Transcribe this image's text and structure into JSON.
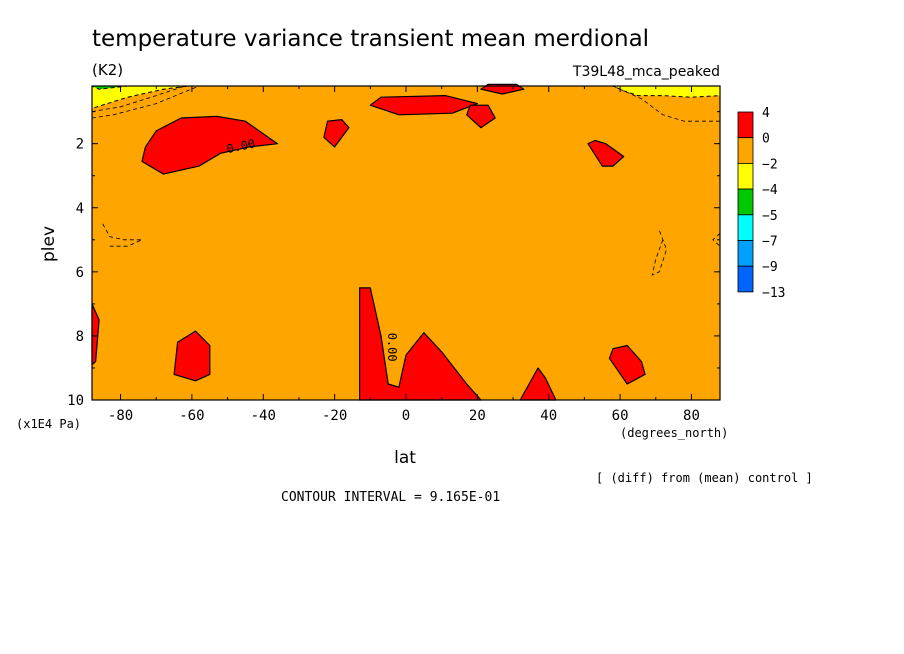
{
  "chart_data": {
    "type": "heatmap",
    "title": "temperature variance transient mean merdional",
    "units": "(K2)",
    "experiment": "T39L48_mca_peaked",
    "xlabel": "lat",
    "x_units": "(degrees_north)",
    "ylabel": "plev",
    "y_units": "(x1E4 Pa)",
    "xlim": [
      -88,
      88
    ],
    "ylim": [
      10,
      0.2
    ],
    "x_ticks": [
      -80,
      -60,
      -40,
      -20,
      0,
      20,
      40,
      60,
      80
    ],
    "y_ticks": [
      2,
      4,
      6,
      8,
      10
    ],
    "x_tick_labels": [
      "-80",
      "-60",
      "-40",
      "-20",
      "0",
      "20",
      "40",
      "60",
      "80"
    ],
    "y_tick_labels": [
      "2",
      "4",
      "6",
      "8",
      "10"
    ],
    "contour_label": "0.00",
    "background_band": {
      "range": "-2 to 0",
      "color": "#ffa500"
    },
    "legend": {
      "position": "right",
      "colors": [
        "#ff0000",
        "#ffa500",
        "#ffff00",
        "#00c800",
        "#00ffff",
        "#00a0ff",
        "#0064ff"
      ],
      "labels": [
        "4",
        "0",
        "−2",
        "−4",
        "−5",
        "−7",
        "−9",
        "−13"
      ]
    },
    "positive_regions": [
      {
        "name": "sh-upper-jet",
        "points": [
          [
            -73,
            2.1
          ],
          [
            -70,
            1.6
          ],
          [
            -63,
            1.2
          ],
          [
            -53,
            1.15
          ],
          [
            -45,
            1.3
          ],
          [
            -38,
            1.85
          ],
          [
            -36,
            2.0
          ],
          [
            -44,
            2.1
          ],
          [
            -52,
            2.3
          ],
          [
            -58,
            2.7
          ],
          [
            -68,
            2.95
          ],
          [
            -74,
            2.55
          ]
        ]
      },
      {
        "name": "upper-sub-1",
        "points": [
          [
            -23,
            1.8
          ],
          [
            -22,
            1.3
          ],
          [
            -18,
            1.25
          ],
          [
            -16,
            1.5
          ],
          [
            -20,
            2.1
          ]
        ]
      },
      {
        "name": "upper-sub-2",
        "points": [
          [
            -7,
            0.55
          ],
          [
            -10,
            0.8
          ],
          [
            -2,
            1.1
          ],
          [
            13,
            1.05
          ],
          [
            20,
            0.75
          ],
          [
            11,
            0.5
          ]
        ]
      },
      {
        "name": "upper-sub-3",
        "points": [
          [
            17,
            1.1
          ],
          [
            18,
            0.8
          ],
          [
            23,
            0.8
          ],
          [
            25,
            1.2
          ],
          [
            21,
            1.5
          ]
        ]
      },
      {
        "name": "top-cap",
        "points": [
          [
            21,
            0.3
          ],
          [
            23,
            0.15
          ],
          [
            31,
            0.15
          ],
          [
            33,
            0.3
          ],
          [
            27,
            0.45
          ]
        ]
      },
      {
        "name": "nh-upper",
        "points": [
          [
            51,
            2.0
          ],
          [
            53,
            1.9
          ],
          [
            56,
            2.0
          ],
          [
            61,
            2.4
          ],
          [
            58,
            2.7
          ],
          [
            55,
            2.7
          ]
        ]
      },
      {
        "name": "equatorial-column",
        "points": [
          [
            -13,
            10
          ],
          [
            -13,
            6.5
          ],
          [
            -10,
            6.5
          ],
          [
            -7,
            8.0
          ],
          [
            -5,
            9.5
          ],
          [
            -2,
            9.6
          ],
          [
            0,
            8.6
          ],
          [
            5,
            7.9
          ],
          [
            10,
            8.5
          ],
          [
            17,
            9.5
          ],
          [
            21,
            10
          ]
        ]
      },
      {
        "name": "sh-lower",
        "points": [
          [
            -65,
            9.2
          ],
          [
            -64,
            8.2
          ],
          [
            -59,
            7.85
          ],
          [
            -55,
            8.3
          ],
          [
            -55,
            9.2
          ],
          [
            -59,
            9.4
          ]
        ]
      },
      {
        "name": "nh-lower",
        "points": [
          [
            57,
            8.7
          ],
          [
            58,
            8.4
          ],
          [
            62,
            8.3
          ],
          [
            66,
            8.8
          ],
          [
            67,
            9.2
          ],
          [
            62,
            9.5
          ]
        ]
      },
      {
        "name": "edge-lower",
        "points": [
          [
            -88,
            7.0
          ],
          [
            -86,
            7.5
          ],
          [
            -87,
            8.8
          ],
          [
            -88,
            8.9
          ]
        ]
      },
      {
        "name": "bottom-40",
        "points": [
          [
            32,
            10
          ],
          [
            37,
            9.0
          ],
          [
            39,
            9.3
          ],
          [
            42,
            10
          ]
        ]
      }
    ],
    "negative_regions": [
      {
        "name": "sh-top-yellow",
        "color": "#ffff00",
        "points": [
          [
            -88,
            0.2
          ],
          [
            -61,
            0.2
          ],
          [
            -68,
            0.3
          ],
          [
            -78,
            0.55
          ],
          [
            -88,
            0.9
          ]
        ]
      },
      {
        "name": "sh-top-green",
        "color": "#00c800",
        "points": [
          [
            -88,
            0.2
          ],
          [
            -78,
            0.2
          ],
          [
            -86,
            0.3
          ]
        ]
      },
      {
        "name": "nh-top-yellow",
        "color": "#ffff00",
        "points": [
          [
            58,
            0.2
          ],
          [
            88,
            0.2
          ],
          [
            88,
            0.5
          ],
          [
            80,
            0.55
          ],
          [
            72,
            0.5
          ],
          [
            65,
            0.5
          ],
          [
            61,
            0.35
          ]
        ]
      }
    ],
    "dashed_contours": [
      [
        [
          -88,
          1.0
        ],
        [
          -80,
          0.85
        ],
        [
          -70,
          0.5
        ],
        [
          -62,
          0.2
        ]
      ],
      [
        [
          -88,
          1.2
        ],
        [
          -82,
          1.1
        ],
        [
          -70,
          0.75
        ],
        [
          -58,
          0.2
        ]
      ],
      [
        [
          88,
          1.3
        ],
        [
          78,
          1.3
        ],
        [
          72,
          1.1
        ],
        [
          66,
          0.6
        ],
        [
          58,
          0.2
        ]
      ],
      [
        [
          72,
          5.0
        ],
        [
          70,
          5.6
        ],
        [
          69,
          6.1
        ],
        [
          71,
          6.0
        ],
        [
          73,
          5.3
        ],
        [
          71,
          4.7
        ]
      ],
      [
        [
          -85,
          4.5
        ],
        [
          -83,
          4.9
        ],
        [
          -79,
          5.0
        ],
        [
          -74,
          5.0
        ],
        [
          -78,
          5.2
        ],
        [
          -83,
          5.2
        ]
      ],
      [
        [
          88,
          4.8
        ],
        [
          86,
          5.0
        ],
        [
          88,
          5.2
        ]
      ]
    ],
    "notes": {
      "difference": "[ (diff) from (mean) control ]",
      "contour_interval": "CONTOUR INTERVAL = 9.165E-01"
    }
  }
}
